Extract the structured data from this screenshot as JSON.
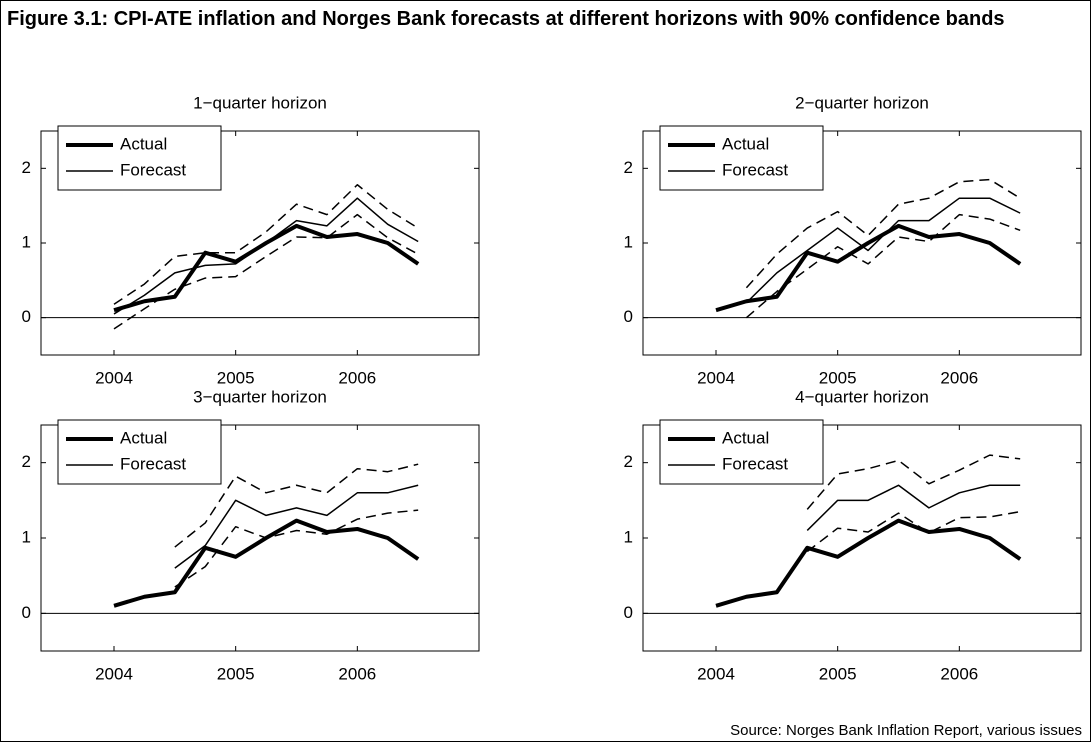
{
  "title": "Figure 3.1: CPI-ATE inflation and Norges Bank forecasts at different horizons with 90% confidence bands",
  "source": "Source: Norges Bank Inflation Report, various issues",
  "chart_data": [
    {
      "type": "line",
      "title": "1−quarter horizon",
      "x": [
        2004,
        2004.25,
        2004.5,
        2004.75,
        2005,
        2005.25,
        2005.5,
        2005.75,
        2006,
        2006.25,
        2006.5
      ],
      "xlim": [
        2003.4,
        2007.0
      ],
      "xticks": [
        2004,
        2005,
        2006
      ],
      "ylim": [
        -0.5,
        2.5
      ],
      "yticks": [
        0,
        1,
        2
      ],
      "hline": 0,
      "legend": "upper left",
      "series": [
        {
          "name": "Actual",
          "color": "#000000",
          "width": 4,
          "dash": false,
          "values": [
            0.1,
            0.22,
            0.28,
            0.87,
            0.75,
            1.0,
            1.23,
            1.08,
            1.12,
            1.0,
            0.72
          ]
        },
        {
          "name": "Forecast",
          "color": "#000000",
          "width": 1.5,
          "dash": false,
          "values": [
            0.05,
            0.3,
            0.6,
            0.7,
            0.72,
            1.0,
            1.3,
            1.23,
            1.6,
            1.25,
            1.02
          ]
        },
        {
          "color": "#000000",
          "width": 1.5,
          "dash": true,
          "values": [
            0.18,
            0.45,
            0.82,
            0.87,
            0.87,
            1.15,
            1.52,
            1.38,
            1.78,
            1.45,
            1.2
          ]
        },
        {
          "color": "#000000",
          "width": 1.5,
          "dash": true,
          "values": [
            -0.15,
            0.12,
            0.38,
            0.53,
            0.55,
            0.82,
            1.08,
            1.07,
            1.38,
            1.07,
            0.85
          ]
        }
      ]
    },
    {
      "type": "line",
      "title": "2−quarter horizon",
      "x": [
        2004,
        2004.25,
        2004.5,
        2004.75,
        2005,
        2005.25,
        2005.5,
        2005.75,
        2006,
        2006.25,
        2006.5
      ],
      "xlim": [
        2003.4,
        2007.0
      ],
      "xticks": [
        2004,
        2005,
        2006
      ],
      "ylim": [
        -0.5,
        2.5
      ],
      "yticks": [
        0,
        1,
        2
      ],
      "hline": 0,
      "legend": "upper left",
      "series": [
        {
          "name": "Actual",
          "color": "#000000",
          "width": 4,
          "dash": false,
          "values": [
            0.1,
            0.22,
            0.28,
            0.87,
            0.75,
            1.0,
            1.23,
            1.08,
            1.12,
            1.0,
            0.72
          ]
        },
        {
          "name": "Forecast",
          "color": "#000000",
          "width": 1.5,
          "dash": false,
          "values": [
            null,
            0.2,
            0.6,
            0.9,
            1.2,
            0.9,
            1.3,
            1.3,
            1.6,
            1.6,
            1.4
          ]
        },
        {
          "color": "#000000",
          "width": 1.5,
          "dash": true,
          "values": [
            null,
            0.4,
            0.85,
            1.2,
            1.42,
            1.1,
            1.52,
            1.6,
            1.82,
            1.85,
            1.6
          ]
        },
        {
          "color": "#000000",
          "width": 1.5,
          "dash": true,
          "values": [
            null,
            0.0,
            0.35,
            0.65,
            0.95,
            0.72,
            1.08,
            1.02,
            1.38,
            1.32,
            1.17
          ]
        }
      ]
    },
    {
      "type": "line",
      "title": "3−quarter horizon",
      "x": [
        2004,
        2004.25,
        2004.5,
        2004.75,
        2005,
        2005.25,
        2005.5,
        2005.75,
        2006,
        2006.25,
        2006.5
      ],
      "xlim": [
        2003.4,
        2007.0
      ],
      "xticks": [
        2004,
        2005,
        2006
      ],
      "ylim": [
        -0.5,
        2.5
      ],
      "yticks": [
        0,
        1,
        2
      ],
      "hline": 0,
      "legend": "upper left",
      "series": [
        {
          "name": "Actual",
          "color": "#000000",
          "width": 4,
          "dash": false,
          "values": [
            0.1,
            0.22,
            0.28,
            0.87,
            0.75,
            1.0,
            1.23,
            1.08,
            1.12,
            1.0,
            0.72
          ]
        },
        {
          "name": "Forecast",
          "color": "#000000",
          "width": 1.5,
          "dash": false,
          "values": [
            null,
            null,
            0.6,
            0.9,
            1.5,
            1.3,
            1.4,
            1.3,
            1.6,
            1.6,
            1.7
          ]
        },
        {
          "color": "#000000",
          "width": 1.5,
          "dash": true,
          "values": [
            null,
            null,
            0.88,
            1.2,
            1.82,
            1.6,
            1.7,
            1.6,
            1.92,
            1.88,
            1.98
          ]
        },
        {
          "color": "#000000",
          "width": 1.5,
          "dash": true,
          "values": [
            null,
            null,
            0.35,
            0.62,
            1.15,
            1.0,
            1.1,
            1.05,
            1.25,
            1.33,
            1.37
          ]
        }
      ]
    },
    {
      "type": "line",
      "title": "4−quarter horizon",
      "x": [
        2004,
        2004.25,
        2004.5,
        2004.75,
        2005,
        2005.25,
        2005.5,
        2005.75,
        2006,
        2006.25,
        2006.5
      ],
      "xlim": [
        2003.4,
        2007.0
      ],
      "xticks": [
        2004,
        2005,
        2006
      ],
      "ylim": [
        -0.5,
        2.5
      ],
      "yticks": [
        0,
        1,
        2
      ],
      "hline": 0,
      "legend": "upper left",
      "series": [
        {
          "name": "Actual",
          "color": "#000000",
          "width": 4,
          "dash": false,
          "values": [
            0.1,
            0.22,
            0.28,
            0.87,
            0.75,
            1.0,
            1.23,
            1.08,
            1.12,
            1.0,
            0.72
          ]
        },
        {
          "name": "Forecast",
          "color": "#000000",
          "width": 1.5,
          "dash": false,
          "values": [
            null,
            null,
            null,
            1.1,
            1.5,
            1.5,
            1.7,
            1.4,
            1.6,
            1.7,
            1.7
          ]
        },
        {
          "color": "#000000",
          "width": 1.5,
          "dash": true,
          "values": [
            null,
            null,
            null,
            1.38,
            1.85,
            1.92,
            2.03,
            1.72,
            1.9,
            2.1,
            2.05
          ]
        },
        {
          "color": "#000000",
          "width": 1.5,
          "dash": true,
          "values": [
            null,
            null,
            null,
            0.82,
            1.13,
            1.08,
            1.33,
            1.07,
            1.27,
            1.28,
            1.35
          ]
        }
      ]
    }
  ]
}
